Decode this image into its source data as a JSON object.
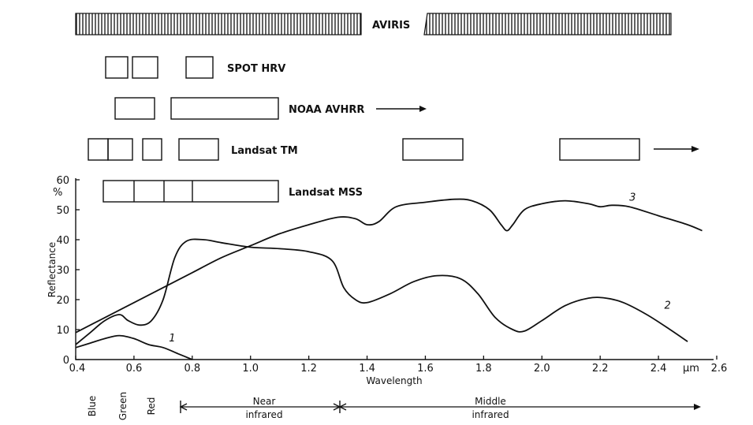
{
  "sensors": {
    "aviris": "AVIRIS",
    "spot": "SPOT  HRV",
    "noaa": "NOAA  AVHRR",
    "landsat_tm": "Landsat  TM",
    "landsat_mss": "Landsat  MSS"
  },
  "regions": {
    "blue": "Blue",
    "green": "Green",
    "red": "Red",
    "near_line1": "Near",
    "near_line2": "infrared",
    "middle_line1": "Middle",
    "middle_line2": "infrared"
  },
  "chart_data": {
    "type": "line",
    "xlabel": "Wavelength",
    "ylabel": "Reflectance",
    "y_unit_label": "%",
    "x_unit_label": "μm",
    "xlim": [
      0.4,
      2.6
    ],
    "ylim": [
      0,
      60
    ],
    "x_ticks": [
      "0.4",
      "0.6",
      "0.8",
      "1.0",
      "1.2",
      "1.4",
      "1.6",
      "1.8",
      "2.0",
      "2.2",
      "2.4",
      "2.6"
    ],
    "y_ticks": [
      "0",
      "10",
      "20",
      "30",
      "40",
      "50",
      "60"
    ],
    "grid": false,
    "series": [
      {
        "name": "1",
        "x": [
          0.4,
          0.45,
          0.5,
          0.55,
          0.6,
          0.65,
          0.7,
          0.75,
          0.8
        ],
        "y": [
          4,
          5.5,
          7,
          8,
          7,
          5,
          4,
          2,
          0
        ]
      },
      {
        "name": "2",
        "x": [
          0.4,
          0.45,
          0.5,
          0.55,
          0.58,
          0.62,
          0.66,
          0.7,
          0.74,
          0.78,
          0.84,
          0.9,
          1.0,
          1.1,
          1.2,
          1.28,
          1.32,
          1.36,
          1.4,
          1.48,
          1.56,
          1.64,
          1.72,
          1.78,
          1.84,
          1.9,
          1.94,
          2.0,
          2.08,
          2.16,
          2.22,
          2.28,
          2.36,
          2.44,
          2.5
        ],
        "y": [
          5,
          9,
          13,
          15,
          13,
          11.5,
          13,
          20,
          34,
          39.5,
          40,
          39,
          37.5,
          37,
          36,
          33,
          24,
          20,
          19,
          22,
          26,
          28,
          27,
          22,
          14,
          10,
          9.5,
          13,
          18,
          20.5,
          20.5,
          19,
          15,
          10,
          6
        ]
      },
      {
        "name": "3",
        "x": [
          0.4,
          0.5,
          0.6,
          0.7,
          0.8,
          0.9,
          1.0,
          1.1,
          1.2,
          1.3,
          1.36,
          1.4,
          1.44,
          1.5,
          1.6,
          1.7,
          1.76,
          1.82,
          1.86,
          1.88,
          1.9,
          1.94,
          2.0,
          2.08,
          2.16,
          2.2,
          2.24,
          2.3,
          2.4,
          2.5,
          2.55
        ],
        "y": [
          9,
          14,
          19,
          24,
          29,
          34,
          38,
          42,
          45,
          47.5,
          47,
          45,
          46,
          51,
          52.5,
          53.5,
          53,
          50,
          45,
          43,
          45,
          50,
          52,
          53,
          52,
          51,
          51.5,
          51,
          48,
          45,
          43
        ]
      }
    ]
  }
}
